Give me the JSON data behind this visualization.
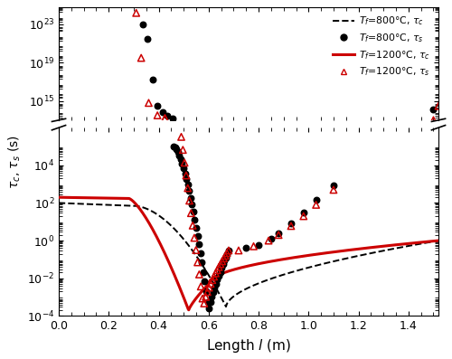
{
  "xlabel": "Length $l$ (m)",
  "ylabel": "$\\tau_c$, $\\tau_s$ (s)",
  "xlim": [
    0.0,
    1.52
  ],
  "break_low": 6,
  "break_high": 13,
  "colors": {
    "line_800": "#000000",
    "line_1200": "#cc0000",
    "dots_800": "#000000",
    "tri_1200": "#cc0000"
  },
  "legend_labels": [
    "$T_f$=800°C, $\\tau_c$",
    "$T_f$=800°C, $\\tau_s$",
    "$T_f$=1200°C, $\\tau_c$",
    "$T_f$=1200°C, $\\tau_s$"
  ]
}
